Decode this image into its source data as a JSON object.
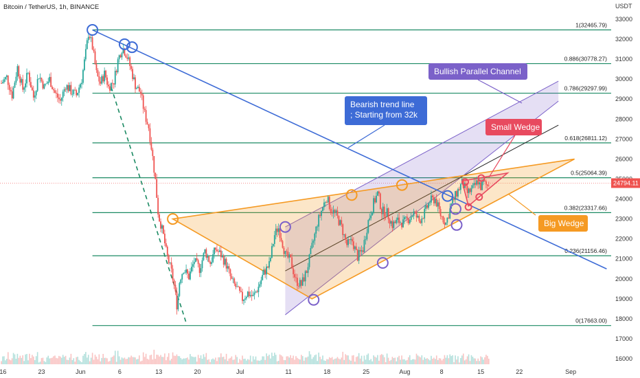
{
  "chart_data": {
    "type": "candlestick",
    "title": "Bitcoin / TetherUS, 1h, BINANCE",
    "currency": "USDT",
    "y_range": [
      15700,
      33300
    ],
    "x_range": [
      0,
      100
    ],
    "y_ticks": [
      16000,
      17000,
      18000,
      19000,
      20000,
      21000,
      22000,
      23000,
      24000,
      25000,
      26000,
      27000,
      28000,
      29000,
      30000,
      31000,
      32000,
      33000
    ],
    "x_ticks": [
      {
        "label": "16",
        "x": 0.3
      },
      {
        "label": "23",
        "x": 7.5
      },
      {
        "label": "Jun",
        "x": 14.8
      },
      {
        "label": "6",
        "x": 22.1
      },
      {
        "label": "13",
        "x": 29.4
      },
      {
        "label": "20",
        "x": 36.6
      },
      {
        "label": "Jul",
        "x": 44.6
      },
      {
        "label": "11",
        "x": 53.6
      },
      {
        "label": "18",
        "x": 60.8
      },
      {
        "label": "25",
        "x": 68.1
      },
      {
        "label": "Aug",
        "x": 75.3
      },
      {
        "label": "8",
        "x": 82.2
      },
      {
        "label": "15",
        "x": 89.5
      },
      {
        "label": "22",
        "x": 96.7
      },
      {
        "label": "Sep",
        "x": 106.3
      }
    ],
    "current_price": "24794.11",
    "current_price_value": 24794.11,
    "price_path": [
      [
        0,
        29800
      ],
      [
        1,
        30100
      ],
      [
        2,
        29200
      ],
      [
        3,
        30600
      ],
      [
        4,
        29500
      ],
      [
        5,
        30300
      ],
      [
        6,
        29100
      ],
      [
        7,
        30200
      ],
      [
        8,
        29600
      ],
      [
        9,
        30000
      ],
      [
        10,
        29300
      ],
      [
        11,
        28900
      ],
      [
        12,
        29700
      ],
      [
        13,
        29400
      ],
      [
        14,
        29200
      ],
      [
        15,
        30000
      ],
      [
        15.8,
        31400
      ],
      [
        16.3,
        32400
      ],
      [
        17,
        31600
      ],
      [
        17.8,
        30200
      ],
      [
        18.5,
        29800
      ],
      [
        19.3,
        30300
      ],
      [
        20,
        29600
      ],
      [
        21,
        29900
      ],
      [
        21.8,
        31000
      ],
      [
        22.6,
        31600
      ],
      [
        23.4,
        31200
      ],
      [
        24.2,
        30500
      ],
      [
        25,
        29700
      ],
      [
        26,
        29300
      ],
      [
        26.8,
        28200
      ],
      [
        27.5,
        27600
      ],
      [
        28.2,
        26200
      ],
      [
        28.8,
        24800
      ],
      [
        29.3,
        23200
      ],
      [
        29.8,
        22700
      ],
      [
        30.3,
        22100
      ],
      [
        30.8,
        21300
      ],
      [
        31.3,
        20800
      ],
      [
        31.8,
        20300
      ],
      [
        32.3,
        19600
      ],
      [
        32.8,
        18600
      ],
      [
        33.3,
        20000
      ],
      [
        34,
        20500
      ],
      [
        35,
        20100
      ],
      [
        36,
        20900
      ],
      [
        37,
        20500
      ],
      [
        38,
        21400
      ],
      [
        39,
        20800
      ],
      [
        40,
        21500
      ],
      [
        41,
        21200
      ],
      [
        42,
        20700
      ],
      [
        43,
        19900
      ],
      [
        44,
        19500
      ],
      [
        45,
        19000
      ],
      [
        46,
        19300
      ],
      [
        47,
        19100
      ],
      [
        48,
        19600
      ],
      [
        49,
        20300
      ],
      [
        50,
        20700
      ],
      [
        51,
        22200
      ],
      [
        51.7,
        22600
      ],
      [
        52.3,
        22000
      ],
      [
        53,
        21200
      ],
      [
        54,
        20900
      ],
      [
        55,
        19900
      ],
      [
        56,
        19700
      ],
      [
        57,
        20400
      ],
      [
        58,
        21600
      ],
      [
        59,
        22800
      ],
      [
        60,
        23600
      ],
      [
        60.7,
        24100
      ],
      [
        61.5,
        23500
      ],
      [
        62.5,
        23200
      ],
      [
        63.5,
        22600
      ],
      [
        64.5,
        21700
      ],
      [
        65.5,
        21900
      ],
      [
        66.5,
        21100
      ],
      [
        67.5,
        21500
      ],
      [
        68.5,
        22900
      ],
      [
        69.5,
        23800
      ],
      [
        70.3,
        24300
      ],
      [
        71,
        23400
      ],
      [
        72,
        23300
      ],
      [
        73,
        22700
      ],
      [
        74,
        22900
      ],
      [
        75,
        22800
      ],
      [
        76,
        23000
      ],
      [
        77,
        23300
      ],
      [
        78,
        22900
      ],
      [
        79,
        23300
      ],
      [
        80,
        23900
      ],
      [
        81,
        24000
      ],
      [
        82,
        23200
      ],
      [
        83,
        22800
      ],
      [
        84,
        23700
      ],
      [
        85,
        24300
      ],
      [
        86,
        24800
      ],
      [
        87,
        24300
      ],
      [
        88,
        24500
      ],
      [
        89,
        24900
      ],
      [
        89.5,
        24600
      ],
      [
        90,
        24800
      ],
      [
        90.7,
        24650
      ],
      [
        91,
        24794
      ]
    ],
    "annotations": {
      "bearish_label": "Bearish trend line\n; Starting from 32k",
      "channel_label": "Bullish Parallel Channel",
      "small_wedge_label": "Small Wedge",
      "big_wedge_label": "Big Wedge"
    },
    "fib_levels": [
      {
        "label": "1(32465.79)",
        "value": 32465.79
      },
      {
        "label": "0.886(30778.27)",
        "value": 30778.27
      },
      {
        "label": "0.786(29297.99)",
        "value": 29297.99
      },
      {
        "label": "0.618(26811.12)",
        "value": 26811.12
      },
      {
        "label": "0.5(25064.39)",
        "value": 25064.39
      },
      {
        "label": "0.382(23317.66)",
        "value": 23317.66
      },
      {
        "label": "0.236(21156.46)",
        "value": 21156.46
      },
      {
        "label": "0(17663.00)",
        "value": 17663.0
      }
    ],
    "colors": {
      "up": "#26a69a",
      "down": "#ef5350",
      "fib": "#1b8a63",
      "bearish": "#3d6bd6",
      "channel": "#7b61c9",
      "big_wedge": "#f59a23",
      "small_wedge": "#e84a5f",
      "price_tag": "#ef5350"
    }
  }
}
